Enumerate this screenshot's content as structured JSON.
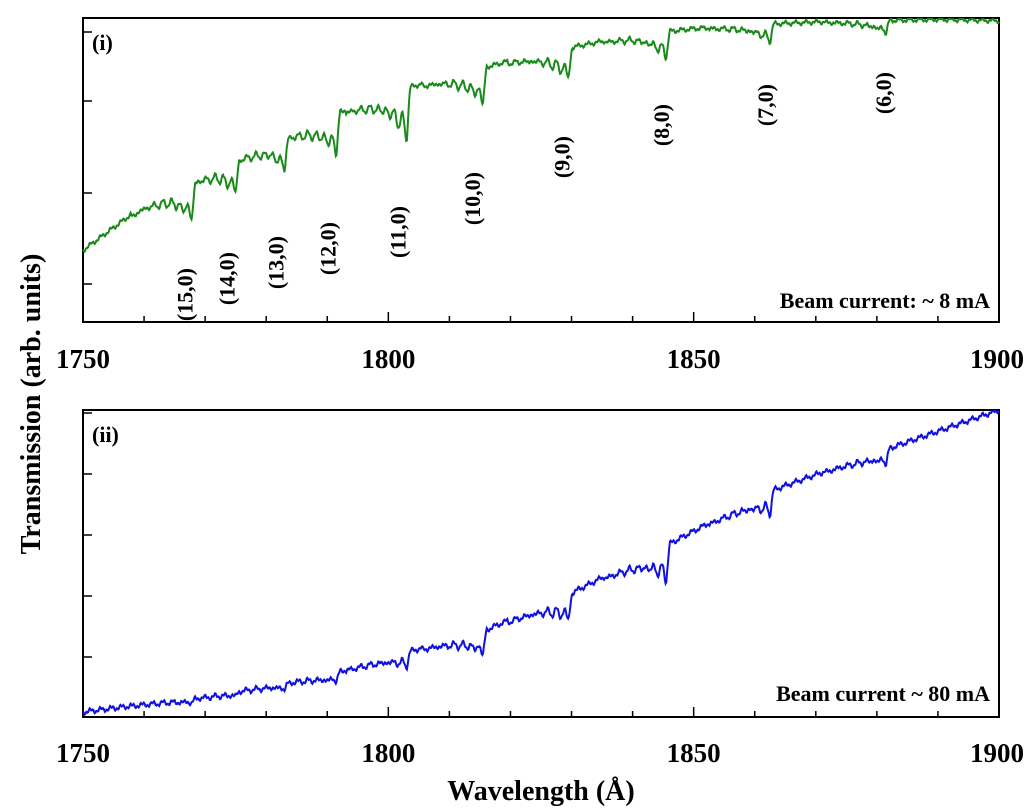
{
  "chart_data": [
    {
      "type": "line",
      "panel_label": "(i)",
      "annotation": "Beam current: ~ 8 mA",
      "color": "#1a8a1a",
      "xlim": [
        1750,
        1900
      ],
      "x_ticks": [
        1750,
        1800,
        1850,
        1900
      ],
      "x_tick_labels": [
        "1750",
        "1800",
        "1850",
        "1900"
      ],
      "y_ticks_labeled": false,
      "ylim": [
        0,
        1
      ],
      "baseline": [
        [
          1750,
          0.13
        ],
        [
          1760,
          0.3
        ],
        [
          1770,
          0.42
        ],
        [
          1780,
          0.53
        ],
        [
          1790,
          0.63
        ],
        [
          1800,
          0.72
        ],
        [
          1810,
          0.78
        ],
        [
          1820,
          0.84
        ],
        [
          1830,
          0.89
        ],
        [
          1840,
          0.935
        ],
        [
          1850,
          0.96
        ],
        [
          1860,
          0.975
        ],
        [
          1870,
          0.985
        ],
        [
          1880,
          0.99
        ],
        [
          1890,
          0.995
        ],
        [
          1900,
          0.99
        ]
      ],
      "bands": [
        {
          "label": "(15,0)",
          "x": 1767.8,
          "depth": 0.14
        },
        {
          "label": "(14,0)",
          "x": 1775.0,
          "depth": 0.12
        },
        {
          "label": "(13,0)",
          "x": 1783.0,
          "depth": 0.12
        },
        {
          "label": "(12,0)",
          "x": 1791.5,
          "depth": 0.16
        },
        {
          "label": "(11,0)",
          "x": 1803.0,
          "depth": 0.2
        },
        {
          "label": "(10,0)",
          "x": 1815.5,
          "depth": 0.14
        },
        {
          "label": "(9,0)",
          "x": 1829.5,
          "depth": 0.12
        },
        {
          "label": "(8,0)",
          "x": 1845.5,
          "depth": 0.1
        },
        {
          "label": "(7,0)",
          "x": 1862.5,
          "depth": 0.07
        },
        {
          "label": "(6,0)",
          "x": 1881.5,
          "depth": 0.05
        }
      ]
    },
    {
      "type": "line",
      "panel_label": "(ii)",
      "annotation": "Beam current ~ 80 mA",
      "color": "#1010e0",
      "xlim": [
        1750,
        1900
      ],
      "x_ticks": [
        1750,
        1800,
        1850,
        1900
      ],
      "x_tick_labels": [
        "1750",
        "1800",
        "1850",
        "1900"
      ],
      "y_ticks_labeled": false,
      "ylim": [
        0,
        1
      ],
      "baseline": [
        [
          1750,
          0.01
        ],
        [
          1770,
          0.06
        ],
        [
          1790,
          0.13
        ],
        [
          1800,
          0.19
        ],
        [
          1815,
          0.27
        ],
        [
          1830,
          0.4
        ],
        [
          1845,
          0.55
        ],
        [
          1862,
          0.73
        ],
        [
          1880,
          0.86
        ],
        [
          1900,
          1.0
        ]
      ],
      "bands": [
        {
          "x": 1767.8,
          "depth": 0.015
        },
        {
          "x": 1775.0,
          "depth": 0.015
        },
        {
          "x": 1783.0,
          "depth": 0.02
        },
        {
          "x": 1791.5,
          "depth": 0.03
        },
        {
          "x": 1803.0,
          "depth": 0.05
        },
        {
          "x": 1815.5,
          "depth": 0.08
        },
        {
          "x": 1829.5,
          "depth": 0.09
        },
        {
          "x": 1845.5,
          "depth": 0.12
        },
        {
          "x": 1862.5,
          "depth": 0.08
        },
        {
          "x": 1881.5,
          "depth": 0.05
        }
      ]
    }
  ],
  "y_axis_title": "Transmission (arb. units)",
  "x_axis_title": "Wavelength (Å)"
}
